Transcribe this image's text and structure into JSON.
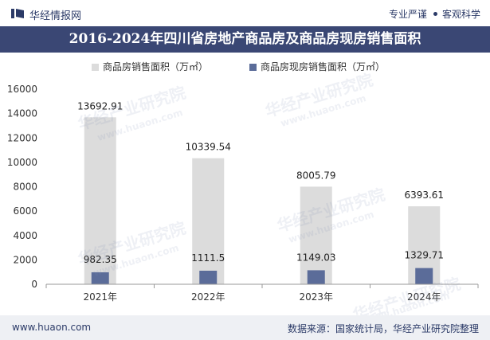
{
  "header": {
    "brand": "华经情报网",
    "slogan_left": "专业严谨",
    "slogan_right": "客观科学",
    "title": "2016-2024年四川省房地产商品房及商品房现房销售面积"
  },
  "colors": {
    "series1": "#dcdcdc",
    "series2": "#5b6c99",
    "title_bg": "#3a4774",
    "brand": "#2b3a67"
  },
  "watermark": {
    "text": "华经产业研究院",
    "url": "www.huaon.com"
  },
  "chart_data": {
    "type": "bar",
    "title": "2016-2024年四川省房地产商品房及商品房现房销售面积",
    "categories": [
      "2021年",
      "2022年",
      "2023年",
      "2024年"
    ],
    "series": [
      {
        "name": "商品房销售面积（万㎡）",
        "values": [
          13692.91,
          10339.54,
          8005.79,
          6393.61
        ],
        "labels": [
          "13692.91",
          "10339.54",
          "8005.79",
          "6393.61"
        ]
      },
      {
        "name": "商品房现房销售面积（万㎡）",
        "values": [
          982.35,
          1111.5,
          1149.03,
          1329.71
        ],
        "labels": [
          "982.35",
          "1111.5",
          "1149.03",
          "1329.71"
        ]
      }
    ],
    "ylim": [
      0,
      16000
    ],
    "yticks": [
      0,
      2000,
      4000,
      6000,
      8000,
      10000,
      12000,
      14000,
      16000
    ],
    "ytick_labels": [
      "0",
      "2000",
      "4000",
      "6000",
      "8000",
      "10000",
      "12000",
      "14000",
      "16000"
    ],
    "xlabel": "",
    "ylabel": "",
    "grid": false,
    "legend_position": "top"
  },
  "footer": {
    "website": "www.huaon.com",
    "source": "数据来源：国家统计局，华经产业研究院整理"
  }
}
